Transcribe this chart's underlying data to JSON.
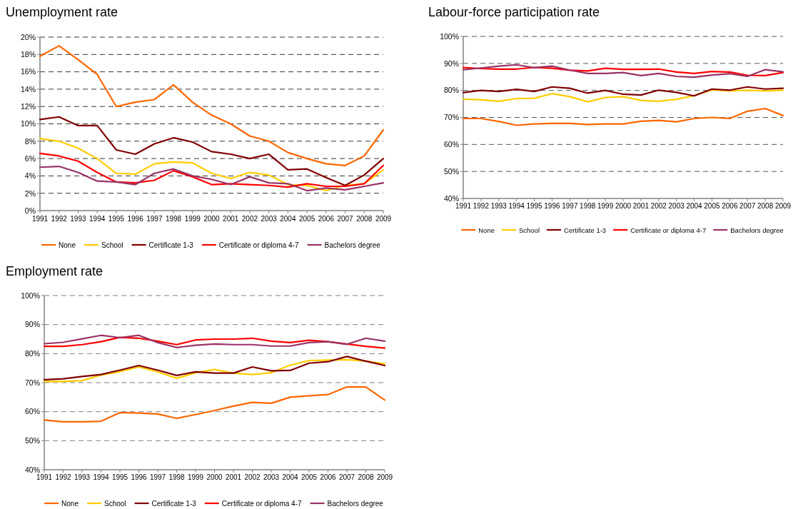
{
  "chart_data": [
    {
      "type": "line",
      "title": "Unemployment rate",
      "categories": [
        "1991",
        "1992",
        "1993",
        "1994",
        "1995",
        "1996",
        "1997",
        "1998",
        "1999",
        "2000",
        "2001",
        "2002",
        "2003",
        "2004",
        "2005",
        "2006",
        "2007",
        "2008",
        "2009"
      ],
      "series": [
        {
          "name": "None",
          "color": "#ff6600",
          "values": [
            17.8,
            19.0,
            17.4,
            15.7,
            12.0,
            12.5,
            12.8,
            14.5,
            12.5,
            11.0,
            10.0,
            8.6,
            8.0,
            6.7,
            6.0,
            5.4,
            5.2,
            6.3,
            9.3
          ]
        },
        {
          "name": "School",
          "color": "#ffcc00",
          "values": [
            8.3,
            8.0,
            7.2,
            6.0,
            4.3,
            4.2,
            5.4,
            5.6,
            5.5,
            4.3,
            3.7,
            4.4,
            4.1,
            3.0,
            2.9,
            2.3,
            2.9,
            3.1,
            4.7
          ]
        },
        {
          "name": "Certificate 1-3",
          "color": "#800000",
          "values": [
            10.5,
            10.8,
            9.8,
            9.8,
            7.0,
            6.5,
            7.7,
            8.4,
            7.9,
            6.8,
            6.5,
            6.0,
            6.5,
            4.7,
            4.8,
            3.8,
            2.9,
            4.1,
            6.0
          ]
        },
        {
          "name": "Certificate or diploma 4-7",
          "color": "#ff0000",
          "values": [
            6.6,
            6.3,
            5.7,
            4.4,
            3.3,
            3.2,
            3.5,
            4.6,
            3.9,
            3.0,
            3.1,
            3.0,
            2.9,
            2.7,
            3.1,
            2.8,
            2.8,
            3.1,
            5.2
          ]
        },
        {
          "name": "Bachelors degree",
          "color": "#993366",
          "values": [
            5.0,
            5.1,
            4.4,
            3.4,
            3.3,
            3.0,
            4.3,
            4.8,
            4.0,
            3.6,
            3.0,
            3.9,
            3.2,
            3.1,
            2.3,
            2.6,
            2.4,
            2.8,
            3.2
          ]
        }
      ],
      "ylim": [
        0,
        20
      ],
      "yticks": [
        {
          "value": 0,
          "label": "0%"
        },
        {
          "value": 2,
          "label": "2%"
        },
        {
          "value": 4,
          "label": "4%"
        },
        {
          "value": 6,
          "label": "6%"
        },
        {
          "value": 8,
          "label": "8%"
        },
        {
          "value": 10,
          "label": "10%"
        },
        {
          "value": 12,
          "label": "12%"
        },
        {
          "value": 14,
          "label": "14%"
        },
        {
          "value": 16,
          "label": "16%"
        },
        {
          "value": 18,
          "label": "18%"
        },
        {
          "value": 20,
          "label": "20%"
        }
      ],
      "grid": "y",
      "legend": "bottom"
    },
    {
      "type": "line",
      "title": "Labour-force participation rate",
      "categories": [
        "1991",
        "1992",
        "1993",
        "1994",
        "1995",
        "1996",
        "1997",
        "1998",
        "1999",
        "2000",
        "2001",
        "2002",
        "2003",
        "2004",
        "2005",
        "2006",
        "2007",
        "2008",
        "2009"
      ],
      "series": [
        {
          "name": "None",
          "color": "#ff6600",
          "values": [
            69.6,
            69.6,
            68.5,
            67.1,
            67.6,
            67.8,
            67.8,
            67.4,
            67.6,
            67.6,
            68.6,
            68.9,
            68.4,
            69.6,
            70.0,
            69.6,
            72.3,
            73.3,
            70.7
          ]
        },
        {
          "name": "School",
          "color": "#ffcc00",
          "values": [
            76.8,
            76.5,
            76.0,
            77.0,
            77.1,
            78.8,
            77.7,
            75.8,
            77.4,
            77.7,
            76.3,
            76.0,
            76.7,
            78.1,
            80.2,
            79.8,
            80.1,
            79.8,
            80.1
          ]
        },
        {
          "name": "Certificate 1-3",
          "color": "#800000",
          "values": [
            79.2,
            80.0,
            79.6,
            80.4,
            79.6,
            81.3,
            80.8,
            79.0,
            80.0,
            78.6,
            78.3,
            80.1,
            79.3,
            78.0,
            80.5,
            80.1,
            81.3,
            80.5,
            80.8
          ]
        },
        {
          "name": "Certificate or diploma 4-7",
          "color": "#ff0000",
          "values": [
            88.5,
            88.1,
            87.9,
            87.9,
            88.5,
            88.2,
            87.5,
            87.2,
            88.2,
            87.8,
            87.8,
            87.9,
            86.8,
            86.3,
            87.0,
            86.8,
            85.6,
            85.5,
            86.6
          ]
        },
        {
          "name": "Bachelors degree",
          "color": "#993366",
          "values": [
            87.7,
            88.3,
            89.0,
            89.5,
            88.4,
            89.0,
            87.5,
            86.3,
            86.3,
            86.6,
            85.5,
            86.3,
            85.2,
            84.9,
            85.7,
            86.2,
            85.2,
            87.7,
            86.9
          ]
        }
      ],
      "ylim": [
        40,
        100
      ],
      "yticks": [
        {
          "value": 40,
          "label": "40%"
        },
        {
          "value": 50,
          "label": "50%"
        },
        {
          "value": 60,
          "label": "60%"
        },
        {
          "value": 70,
          "label": "70%"
        },
        {
          "value": 80,
          "label": "80%"
        },
        {
          "value": 90,
          "label": "90%"
        },
        {
          "value": 100,
          "label": "100%"
        }
      ],
      "grid": "y",
      "legend": "bottom"
    },
    {
      "type": "line",
      "title": "Employment rate",
      "categories": [
        "1991",
        "1992",
        "1993",
        "1994",
        "1995",
        "1996",
        "1997",
        "1998",
        "1999",
        "2000",
        "2001",
        "2002",
        "2003",
        "2004",
        "2005",
        "2006",
        "2007",
        "2008",
        "2009"
      ],
      "series": [
        {
          "name": "None",
          "color": "#ff6600",
          "values": [
            57.1,
            56.5,
            56.5,
            56.7,
            59.7,
            59.5,
            59.2,
            57.7,
            59.0,
            60.4,
            61.9,
            63.2,
            62.9,
            65.0,
            65.5,
            65.9,
            68.5,
            68.5,
            64.0
          ]
        },
        {
          "name": "School",
          "color": "#ffcc00",
          "values": [
            70.4,
            70.4,
            70.7,
            72.6,
            73.8,
            75.4,
            73.7,
            71.5,
            73.4,
            74.5,
            73.3,
            72.8,
            73.4,
            76.0,
            77.6,
            77.8,
            77.9,
            77.4,
            76.5
          ]
        },
        {
          "name": "Certificate 1-3",
          "color": "#800000",
          "values": [
            71.0,
            71.3,
            72.1,
            72.8,
            74.3,
            75.9,
            74.3,
            72.5,
            73.7,
            73.3,
            73.3,
            75.4,
            74.1,
            74.2,
            76.7,
            77.2,
            79.0,
            77.4,
            75.9
          ]
        },
        {
          "name": "Certificate or diploma 4-7",
          "color": "#ff0000",
          "values": [
            82.5,
            82.5,
            83.1,
            84.1,
            85.6,
            85.3,
            84.3,
            83.1,
            84.7,
            85.0,
            85.0,
            85.3,
            84.3,
            83.8,
            84.6,
            84.1,
            83.3,
            82.5,
            81.9
          ]
        },
        {
          "name": "Bachelors degree",
          "color": "#993366",
          "values": [
            83.4,
            83.9,
            85.1,
            86.3,
            85.5,
            86.3,
            83.8,
            82.1,
            82.9,
            83.3,
            83.1,
            83.1,
            82.6,
            82.6,
            83.8,
            84.1,
            83.2,
            85.3,
            84.3
          ]
        }
      ],
      "ylim": [
        40,
        100
      ],
      "yticks": [
        {
          "value": 40,
          "label": "40%"
        },
        {
          "value": 50,
          "label": "50%"
        },
        {
          "value": 60,
          "label": "60%"
        },
        {
          "value": 70,
          "label": "70%"
        },
        {
          "value": 80,
          "label": "80%"
        },
        {
          "value": 90,
          "label": "90%"
        },
        {
          "value": 100,
          "label": "100%"
        }
      ],
      "grid": "y",
      "legend": "bottom"
    }
  ]
}
